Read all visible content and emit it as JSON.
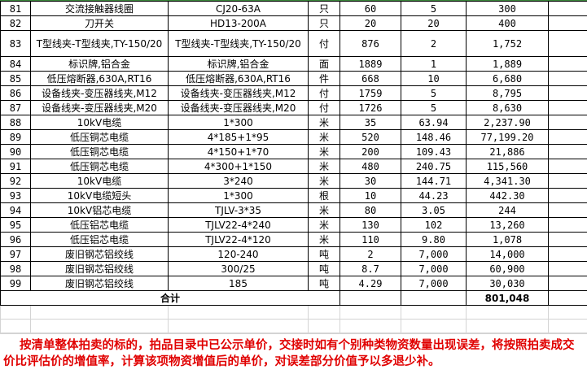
{
  "rows": [
    {
      "no": "81",
      "name": "交流接触器线圈",
      "spec": "CJ20-63A",
      "unit": "只",
      "qty": "60",
      "price": "5",
      "amount": "300"
    },
    {
      "no": "82",
      "name": "刀开关",
      "spec": "HD13-200A",
      "unit": "只",
      "qty": "20",
      "price": "20",
      "amount": "400"
    },
    {
      "no": "83",
      "name": "T型线夹-T型线夹,TY-150/20",
      "spec": "T型线夹-T型线夹,TY-150/20",
      "unit": "付",
      "qty": "876",
      "price": "2",
      "amount": "1,752"
    },
    {
      "no": "84",
      "name": "标识牌,铝合金",
      "spec": "标识牌,铝合金",
      "unit": "面",
      "qty": "1889",
      "price": "1",
      "amount": "1,889"
    },
    {
      "no": "85",
      "name": "低压熔断器,630A,RT16",
      "spec": "低压熔断器,630A,RT16",
      "unit": "件",
      "qty": "668",
      "price": "10",
      "amount": "6,680"
    },
    {
      "no": "86",
      "name": "设备线夹-变压器线夹,M12",
      "spec": "设备线夹-变压器线夹,M12",
      "unit": "付",
      "qty": "1759",
      "price": "5",
      "amount": "8,795"
    },
    {
      "no": "87",
      "name": "设备线夹-变压器线夹,M20",
      "spec": "设备线夹-变压器线夹,M20",
      "unit": "付",
      "qty": "1726",
      "price": "5",
      "amount": "8,630"
    },
    {
      "no": "88",
      "name": "10kV电缆",
      "spec": "1*300",
      "unit": "米",
      "qty": "35",
      "price": "63.94",
      "amount": "2,237.90"
    },
    {
      "no": "89",
      "name": "低压铜芯电缆",
      "spec": "4*185+1*95",
      "unit": "米",
      "qty": "520",
      "price": "148.46",
      "amount": "77,199.20"
    },
    {
      "no": "90",
      "name": "低压铜芯电缆",
      "spec": "4*150+1*70",
      "unit": "米",
      "qty": "200",
      "price": "109.43",
      "amount": "21,886"
    },
    {
      "no": "91",
      "name": "低压铜芯电缆",
      "spec": "4*300+1*150",
      "unit": "米",
      "qty": "480",
      "price": "240.75",
      "amount": "115,560"
    },
    {
      "no": "92",
      "name": "10kV电缆",
      "spec": "3*240",
      "unit": "米",
      "qty": "30",
      "price": "144.71",
      "amount": "4,341.30"
    },
    {
      "no": "93",
      "name": "10kV电缆短头",
      "spec": "1*300",
      "unit": "根",
      "qty": "10",
      "price": "44.23",
      "amount": "442.30"
    },
    {
      "no": "94",
      "name": "10kV铝芯电缆",
      "spec": "TJLV-3*35",
      "unit": "米",
      "qty": "80",
      "price": "3.05",
      "amount": "244"
    },
    {
      "no": "95",
      "name": "低压铝芯电缆",
      "spec": "TJLV22-4*240",
      "unit": "米",
      "qty": "130",
      "price": "102",
      "amount": "13,260"
    },
    {
      "no": "96",
      "name": "低压铝芯电缆",
      "spec": "TJLV22-4*120",
      "unit": "米",
      "qty": "110",
      "price": "9.80",
      "amount": "1,078"
    },
    {
      "no": "97",
      "name": "废旧钢芯铝绞线",
      "spec": "120-240",
      "unit": "吨",
      "qty": "2",
      "price": "7,000",
      "amount": "14,000"
    },
    {
      "no": "98",
      "name": "废旧钢芯铝绞线",
      "spec": "300/25",
      "unit": "吨",
      "qty": "8.7",
      "price": "7,000",
      "amount": "60,900"
    },
    {
      "no": "99",
      "name": "废旧钢芯铝绞线",
      "spec": "185",
      "unit": "吨",
      "qty": "4.29",
      "price": "7,000",
      "amount": "30,030"
    }
  ],
  "total": {
    "label": "合计",
    "amount": "801,048"
  },
  "note": "按清单整体拍卖的标的，拍品目录中已公示单价，交接时如有个别种类物资数量出现误差，将按照拍卖成交价比评估价的增值率，计算该项物资增值后的单价，对误差部分价值予以多退少补。",
  "colors": {
    "note_text": "#e00000",
    "grid_border": "#000000",
    "top_border": "#3c8a3c"
  }
}
